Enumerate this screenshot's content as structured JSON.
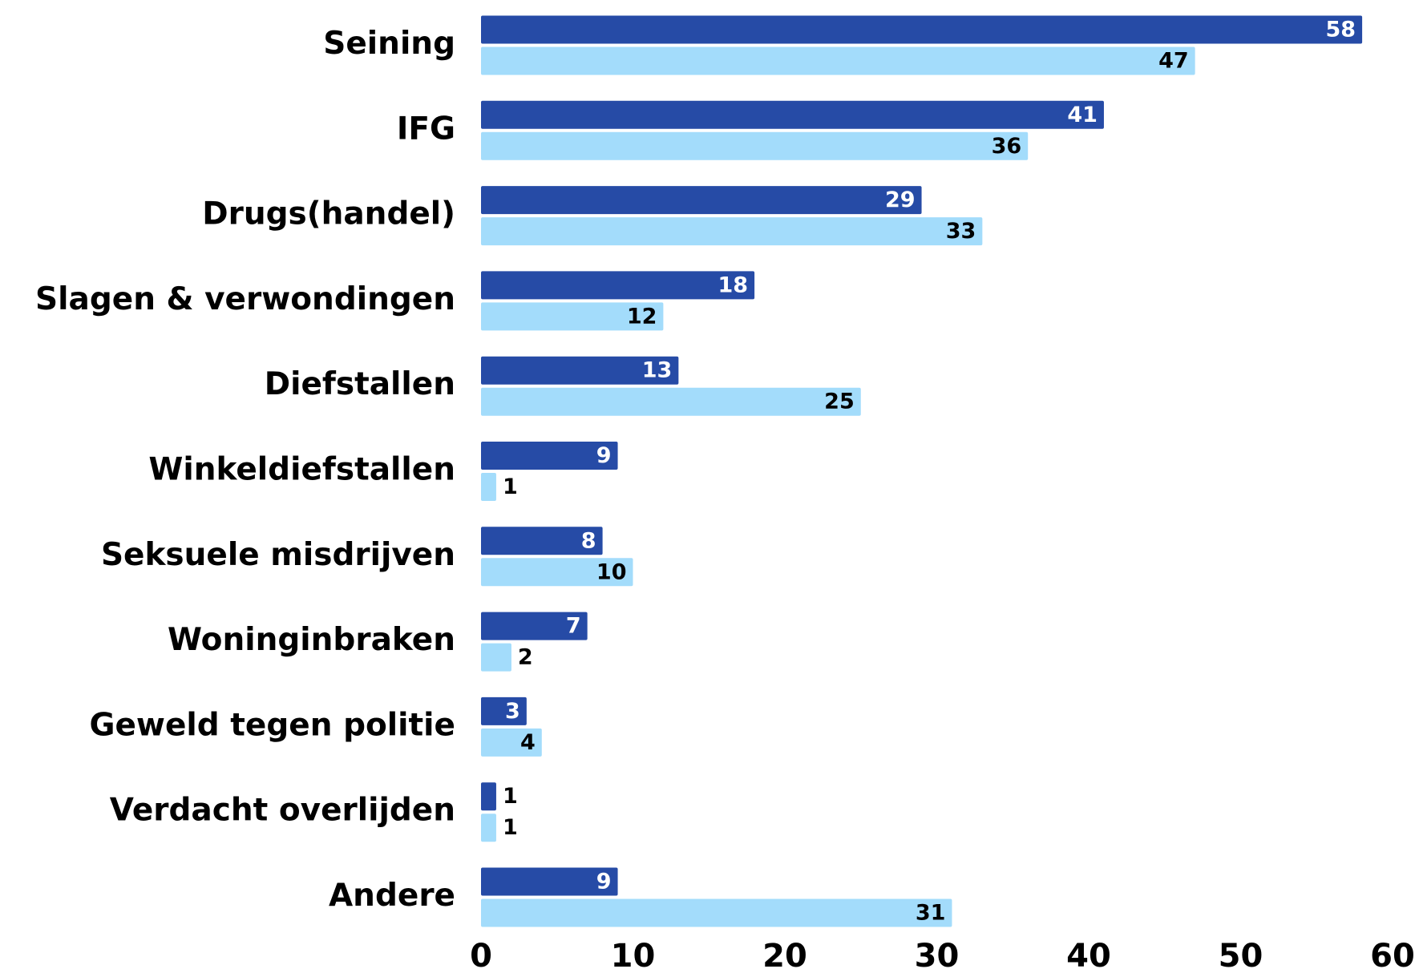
{
  "chart_data": {
    "type": "bar",
    "orientation": "horizontal",
    "categories": [
      "Seining",
      "IFG",
      "Drugs(handel)",
      "Slagen & verwondingen",
      "Diefstallen",
      "Winkeldiefstallen",
      "Seksuele misdrijven",
      "Woninginbraken",
      "Geweld tegen politie",
      "Verdacht overlijden",
      "Andere"
    ],
    "series": [
      {
        "color": "#264ba6",
        "values": [
          58,
          41,
          29,
          18,
          13,
          9,
          8,
          7,
          3,
          1,
          9
        ]
      },
      {
        "color": "#a3dcfb",
        "values": [
          47,
          36,
          33,
          12,
          25,
          1,
          10,
          2,
          4,
          1,
          31
        ]
      }
    ],
    "xlim": [
      0,
      60
    ],
    "xticks": [
      0,
      10,
      20,
      30,
      40,
      50,
      60
    ],
    "grid": false
  }
}
